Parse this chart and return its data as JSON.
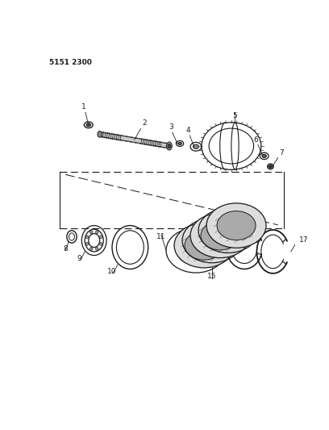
{
  "part_number": "5151 2300",
  "bg_color": "#ffffff",
  "line_color": "#1a1a1a",
  "fig_width": 4.08,
  "fig_height": 5.33,
  "dpi": 100
}
